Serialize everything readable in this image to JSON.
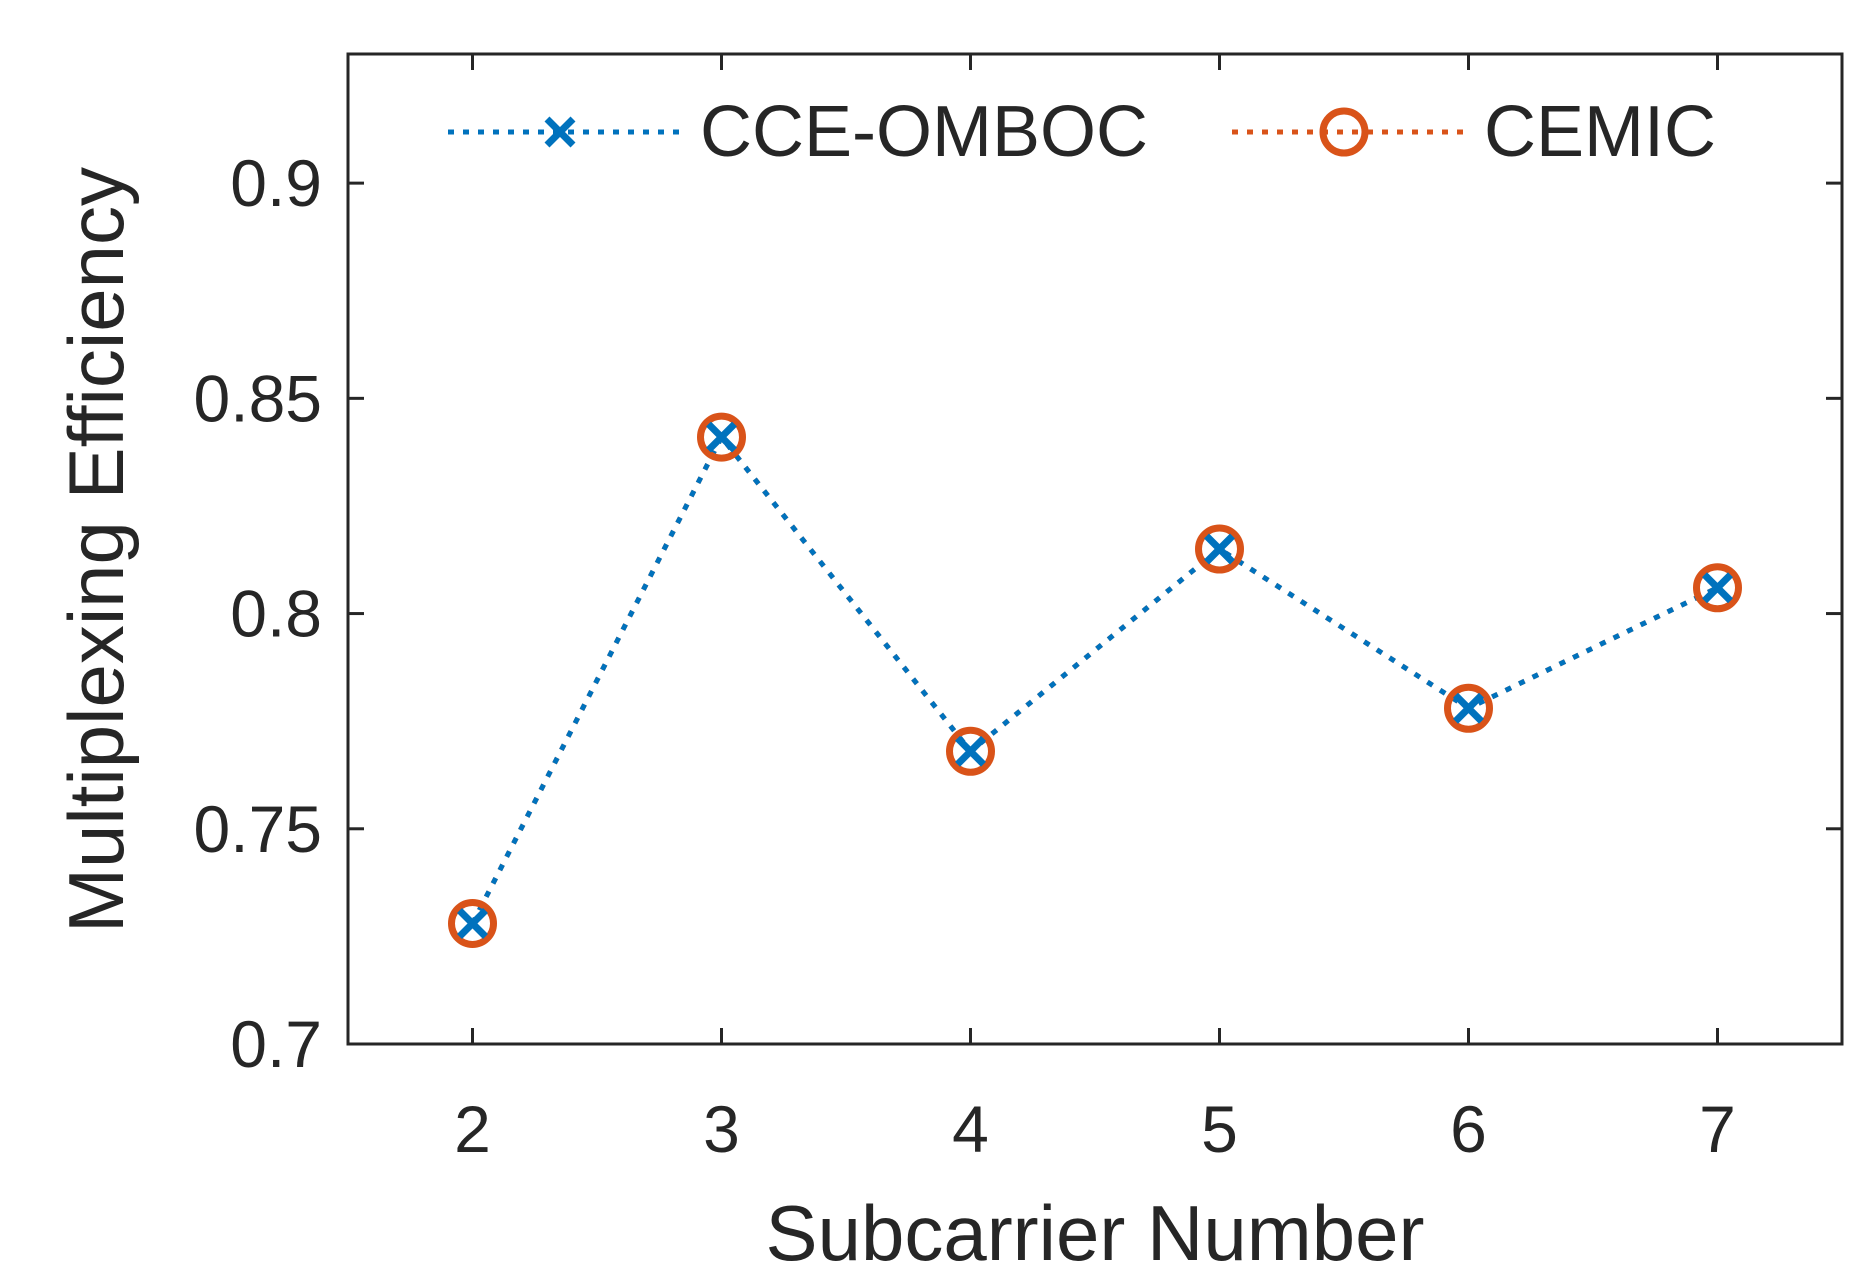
{
  "chart_data": {
    "type": "line",
    "title": "",
    "xlabel": "Subcarrier Number",
    "ylabel": "Multiplexing Efficiency",
    "xlim": [
      1.5,
      7.5
    ],
    "ylim": [
      0.7,
      0.93
    ],
    "x": [
      2,
      3,
      4,
      5,
      6,
      7
    ],
    "x_ticks": [
      2,
      3,
      4,
      5,
      6,
      7
    ],
    "x_tick_labels": [
      "2",
      "3",
      "4",
      "5",
      "6",
      "7"
    ],
    "y_ticks": [
      0.7,
      0.75,
      0.8,
      0.85,
      0.9
    ],
    "y_tick_labels": [
      "0.7",
      "0.75",
      "0.8",
      "0.85",
      "0.9"
    ],
    "grid": false,
    "legend_position": "top",
    "series": [
      {
        "name": "CCE-OMBOC",
        "values": [
          0.728,
          0.841,
          0.768,
          0.815,
          0.778,
          0.806
        ],
        "color": "#0072BD",
        "marker": "x",
        "line_style": "dotted"
      },
      {
        "name": "CEMIC",
        "values": [
          0.728,
          0.841,
          0.768,
          0.815,
          0.778,
          0.806
        ],
        "color": "#D95319",
        "marker": "o",
        "line_style": "dotted"
      }
    ]
  }
}
